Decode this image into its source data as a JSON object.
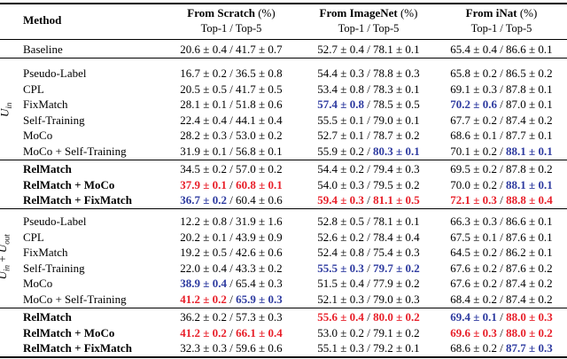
{
  "header": {
    "method": "Method",
    "columns": [
      {
        "title": "From Scratch",
        "unit": "(%)",
        "sub": "Top-1 / Top-5"
      },
      {
        "title": "From ImageNet",
        "unit": "(%)",
        "sub": "Top-1 / Top-5"
      },
      {
        "title": "From iNat",
        "unit": "(%)",
        "sub": "Top-1 / Top-5"
      }
    ]
  },
  "colors": {
    "best": "#e8202a",
    "second": "#2e3ba0",
    "plain": "#000000"
  },
  "group_labels": {
    "uin": {
      "main": "U",
      "sub": "in"
    },
    "uinout": {
      "a": "U",
      "a_sub": "in",
      "plus": " + ",
      "b": "U",
      "b_sub": "out"
    }
  },
  "sections": [
    {
      "id": "baseline",
      "rows": [
        {
          "method": "Baseline",
          "bold": false,
          "cells": [
            [
              {
                "t": "20.6 ± 0.4 / 41.7 ± 0.7"
              }
            ],
            [
              {
                "t": "52.7 ± 0.4 / 78.1 ± 0.1"
              }
            ],
            [
              {
                "t": "65.4 ± 0.4 / 86.6 ± 0.1"
              }
            ]
          ]
        }
      ]
    },
    {
      "id": "uin-methods",
      "rows": [
        {
          "method": "Pseudo-Label",
          "bold": false,
          "cells": [
            [
              {
                "t": "16.7 ± 0.2 / 36.5 ± 0.8"
              }
            ],
            [
              {
                "t": "54.4 ± 0.3 / 78.8 ± 0.3"
              }
            ],
            [
              {
                "t": "65.8 ± 0.2 / 86.5 ± 0.2"
              }
            ]
          ]
        },
        {
          "method": "CPL",
          "bold": false,
          "cells": [
            [
              {
                "t": "20.5 ± 0.5 / 41.7 ± 0.5"
              }
            ],
            [
              {
                "t": "53.4 ± 0.8 / 78.3 ± 0.1"
              }
            ],
            [
              {
                "t": "69.1 ± 0.3 / 87.8 ± 0.1"
              }
            ]
          ]
        },
        {
          "method": "FixMatch",
          "bold": false,
          "cells": [
            [
              {
                "t": "28.1 ± 0.1 / 51.8 ± 0.6"
              }
            ],
            [
              {
                "t": "57.4 ± 0.8",
                "c": "second",
                "b": true
              },
              {
                "t": " / 78.5 ± 0.5"
              }
            ],
            [
              {
                "t": "70.2 ± 0.6",
                "c": "second",
                "b": true
              },
              {
                "t": " / 87.0 ± 0.1"
              }
            ]
          ]
        },
        {
          "method": "Self-Training",
          "bold": false,
          "cells": [
            [
              {
                "t": "22.4 ± 0.4 / 44.1 ± 0.4"
              }
            ],
            [
              {
                "t": "55.5 ± 0.1 / 79.0 ± 0.1"
              }
            ],
            [
              {
                "t": "67.7 ± 0.2 / 87.4 ± 0.2"
              }
            ]
          ]
        },
        {
          "method": "MoCo",
          "bold": false,
          "cells": [
            [
              {
                "t": "28.2 ± 0.3 / 53.0 ± 0.2"
              }
            ],
            [
              {
                "t": "52.7 ± 0.1 / 78.7 ± 0.2"
              }
            ],
            [
              {
                "t": "68.6 ± 0.1 / 87.7 ± 0.1"
              }
            ]
          ]
        },
        {
          "method": "MoCo + Self-Training",
          "bold": false,
          "cells": [
            [
              {
                "t": "31.9 ± 0.1 / 56.8 ± 0.1"
              }
            ],
            [
              {
                "t": "55.9 ± 0.2 / "
              },
              {
                "t": "80.3 ± 0.1",
                "c": "second",
                "b": true
              }
            ],
            [
              {
                "t": "70.1 ± 0.2 / "
              },
              {
                "t": "88.1 ± 0.1",
                "c": "second",
                "b": true
              }
            ]
          ]
        }
      ]
    },
    {
      "id": "uin-relmatch",
      "rows": [
        {
          "method": "RelMatch",
          "bold": true,
          "cells": [
            [
              {
                "t": "34.5 ± 0.2 / 57.0 ± 0.2"
              }
            ],
            [
              {
                "t": "54.4 ± 0.2 / 79.4 ± 0.3"
              }
            ],
            [
              {
                "t": "69.5 ± 0.2 / 87.8 ± 0.2"
              }
            ]
          ]
        },
        {
          "method": "RelMatch + MoCo",
          "bold": true,
          "cells": [
            [
              {
                "t": "37.9 ± 0.1",
                "c": "best",
                "b": true
              },
              {
                "t": " / "
              },
              {
                "t": "60.8 ± 0.1",
                "c": "best",
                "b": true
              }
            ],
            [
              {
                "t": "54.0 ± 0.3 / 79.5 ± 0.2"
              }
            ],
            [
              {
                "t": "70.0 ± 0.2 / "
              },
              {
                "t": "88.1 ± 0.1",
                "c": "second",
                "b": true
              }
            ]
          ]
        },
        {
          "method": "RelMatch + FixMatch",
          "bold": true,
          "cells": [
            [
              {
                "t": "36.7 ± 0.2",
                "c": "second",
                "b": true
              },
              {
                "t": " / 60.4 ± 0.6"
              }
            ],
            [
              {
                "t": "59.4 ± 0.3",
                "c": "best",
                "b": true
              },
              {
                "t": " / "
              },
              {
                "t": "81.1 ± 0.5",
                "c": "best",
                "b": true
              }
            ],
            [
              {
                "t": "72.1 ± 0.3",
                "c": "best",
                "b": true
              },
              {
                "t": " / "
              },
              {
                "t": "88.8 ± 0.4",
                "c": "best",
                "b": true
              }
            ]
          ]
        }
      ]
    },
    {
      "id": "uinout-methods",
      "rows": [
        {
          "method": "Pseudo-Label",
          "bold": false,
          "cells": [
            [
              {
                "t": "12.2 ± 0.8 / 31.9 ± 1.6"
              }
            ],
            [
              {
                "t": "52.8 ± 0.5 / 78.1 ± 0.1"
              }
            ],
            [
              {
                "t": "66.3 ± 0.3 / 86.6 ± 0.1"
              }
            ]
          ]
        },
        {
          "method": "CPL",
          "bold": false,
          "cells": [
            [
              {
                "t": "20.2 ± 0.1 / 43.9 ± 0.9"
              }
            ],
            [
              {
                "t": "52.6 ± 0.2 / 78.4 ± 0.4"
              }
            ],
            [
              {
                "t": "67.5 ± 0.1 / 87.6 ± 0.1"
              }
            ]
          ]
        },
        {
          "method": "FixMatch",
          "bold": false,
          "cells": [
            [
              {
                "t": "19.2 ± 0.5 / 42.6 ± 0.6"
              }
            ],
            [
              {
                "t": "52.4 ± 0.8 / 75.4 ± 0.3"
              }
            ],
            [
              {
                "t": "64.5 ± 0.2 / 86.2 ± 0.1"
              }
            ]
          ]
        },
        {
          "method": "Self-Training",
          "bold": false,
          "cells": [
            [
              {
                "t": "22.0 ± 0.4 / 43.3 ± 0.2"
              }
            ],
            [
              {
                "t": "55.5 ± 0.3",
                "c": "second",
                "b": true
              },
              {
                "t": " / "
              },
              {
                "t": "79.7 ± 0.2",
                "c": "second",
                "b": true
              }
            ],
            [
              {
                "t": "67.6 ± 0.2 / 87.6 ± 0.2"
              }
            ]
          ]
        },
        {
          "method": "MoCo",
          "bold": false,
          "cells": [
            [
              {
                "t": "38.9 ± 0.4",
                "c": "second",
                "b": true
              },
              {
                "t": " / 65.4 ± 0.3"
              }
            ],
            [
              {
                "t": "51.5 ± 0.4 / 77.9 ± 0.2"
              }
            ],
            [
              {
                "t": "67.6 ± 0.2 / 87.4 ± 0.2"
              }
            ]
          ]
        },
        {
          "method": "MoCo + Self-Training",
          "bold": false,
          "cells": [
            [
              {
                "t": "41.2 ± 0.2",
                "c": "best",
                "b": true
              },
              {
                "t": " / "
              },
              {
                "t": "65.9 ± 0.3",
                "c": "second",
                "b": true
              }
            ],
            [
              {
                "t": "52.1 ± 0.3 / 79.0 ± 0.3"
              }
            ],
            [
              {
                "t": "68.4 ± 0.2 / 87.4 ± 0.2"
              }
            ]
          ]
        }
      ]
    },
    {
      "id": "uinout-relmatch",
      "rows": [
        {
          "method": "RelMatch",
          "bold": true,
          "cells": [
            [
              {
                "t": "36.2 ± 0.2 / 57.3 ± 0.3"
              }
            ],
            [
              {
                "t": "55.6 ± 0.4",
                "c": "best",
                "b": true
              },
              {
                "t": " / "
              },
              {
                "t": "80.0 ± 0.2",
                "c": "best",
                "b": true
              }
            ],
            [
              {
                "t": "69.4 ± 0.1",
                "c": "second",
                "b": true
              },
              {
                "t": " / "
              },
              {
                "t": "88.0 ± 0.3",
                "c": "best",
                "b": true
              }
            ]
          ]
        },
        {
          "method": "RelMatch + MoCo",
          "bold": true,
          "cells": [
            [
              {
                "t": "41.2 ± 0.2",
                "c": "best",
                "b": true
              },
              {
                "t": " / "
              },
              {
                "t": "66.1 ± 0.4",
                "c": "best",
                "b": true
              }
            ],
            [
              {
                "t": "53.0 ± 0.2 / 79.1 ± 0.2"
              }
            ],
            [
              {
                "t": "69.6 ± 0.3",
                "c": "best",
                "b": true
              },
              {
                "t": " / "
              },
              {
                "t": "88.0 ± 0.2",
                "c": "best",
                "b": true
              }
            ]
          ]
        },
        {
          "method": "RelMatch + FixMatch",
          "bold": true,
          "cells": [
            [
              {
                "t": "32.3 ± 0.3 / 59.6 ± 0.6"
              }
            ],
            [
              {
                "t": "55.1 ± 0.3 / 79.2 ± 0.1"
              }
            ],
            [
              {
                "t": "68.6 ± 0.2 / "
              },
              {
                "t": "87.7 ± 0.3",
                "c": "second",
                "b": true
              }
            ]
          ]
        }
      ]
    }
  ]
}
